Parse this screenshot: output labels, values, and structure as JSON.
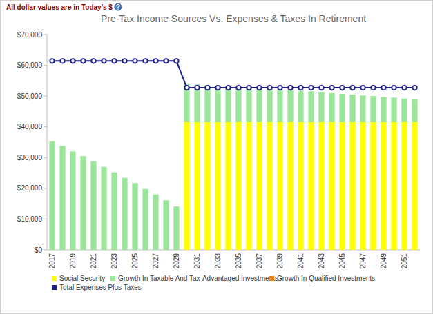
{
  "chart_data": {
    "type": "bar",
    "title": "Pre-Tax Income Sources Vs. Expenses & Taxes In Retirement",
    "subtitle": "All dollar values are in Today's $",
    "stacked": true,
    "grid": false,
    "legend": "bottom",
    "categories": [
      "2017",
      null,
      "2019",
      null,
      "2021",
      null,
      "2023",
      null,
      "2025",
      null,
      "2027",
      null,
      "2029",
      null,
      "2031",
      null,
      "2033",
      null,
      "2035",
      null,
      "2037",
      null,
      "2039",
      null,
      "2041",
      null,
      "2043",
      null,
      "2045",
      null,
      "2047",
      null,
      "2049",
      null,
      "2051",
      null
    ],
    "ylim": [
      0,
      70000
    ],
    "yticks": [
      {
        "value": 0,
        "label": "$0"
      },
      {
        "value": 10000,
        "label": "$10,000"
      },
      {
        "value": 20000,
        "label": "$20,000"
      },
      {
        "value": 30000,
        "label": "$30,000"
      },
      {
        "value": 40000,
        "label": "$40,000"
      },
      {
        "value": 50000,
        "label": "$50,000"
      },
      {
        "value": 60000,
        "label": "$60,000"
      },
      {
        "value": 70000,
        "label": "$70,000"
      }
    ],
    "series": [
      {
        "name": "Social Security",
        "type": "bar",
        "color": "#ffff00",
        "values": [
          0,
          0,
          0,
          0,
          0,
          0,
          0,
          0,
          0,
          0,
          0,
          0,
          0,
          41500,
          41500,
          41500,
          41500,
          41500,
          41500,
          41500,
          41500,
          41500,
          41500,
          41500,
          41500,
          41500,
          41500,
          41500,
          41500,
          41500,
          41500,
          41500,
          41500,
          41500,
          41500,
          41500
        ]
      },
      {
        "name": "Growth In Taxable And Tax-Advantaged Investments",
        "type": "bar",
        "color": "#9be69b",
        "values": [
          35300,
          33800,
          32000,
          30500,
          28800,
          27000,
          25200,
          23400,
          21700,
          19800,
          18000,
          16100,
          14100,
          12500,
          12300,
          12000,
          11800,
          11600,
          11400,
          11200,
          11000,
          10800,
          10600,
          10400,
          10200,
          10000,
          9800,
          9500,
          9200,
          9000,
          8700,
          8500,
          8200,
          8000,
          7700,
          7400
        ]
      },
      {
        "name": "Growth In Qualified Investments",
        "type": "bar",
        "color": "#e8821e",
        "values": [
          0,
          0,
          0,
          0,
          0,
          0,
          0,
          0,
          0,
          0,
          0,
          0,
          0,
          0,
          0,
          0,
          0,
          0,
          0,
          0,
          0,
          0,
          0,
          0,
          0,
          0,
          0,
          0,
          0,
          0,
          0,
          0,
          0,
          0,
          0,
          0
        ]
      },
      {
        "name": "Total Expenses Plus Taxes",
        "type": "line",
        "color": "#1c1c8c",
        "marker": "circle",
        "values": [
          61400,
          61400,
          61400,
          61400,
          61400,
          61400,
          61400,
          61400,
          61400,
          61400,
          61400,
          61400,
          61400,
          52700,
          52700,
          52700,
          52700,
          52700,
          52700,
          52700,
          52700,
          52700,
          52700,
          52700,
          52700,
          52700,
          52700,
          52700,
          52700,
          52700,
          52700,
          52700,
          52700,
          52700,
          52700,
          52700
        ]
      }
    ]
  }
}
